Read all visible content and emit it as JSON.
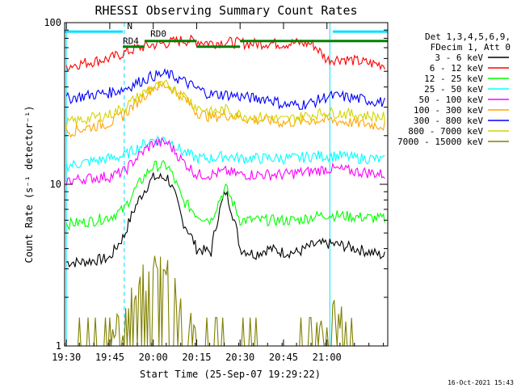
{
  "chart_data": {
    "type": "line",
    "title": "RHESSI Observing Summary Count Rates",
    "xlabel": "Start Time (25-Sep-07 19:29:22)",
    "ylabel": "Count Rate (s⁻¹ detector⁻¹)",
    "y_scale": "log",
    "ylim": [
      1,
      100
    ],
    "y_tick_labels": [
      "1",
      "10",
      "100"
    ],
    "x_tick_labels": [
      "19:30",
      "19:45",
      "20:00",
      "20:15",
      "20:30",
      "20:45",
      "21:00"
    ],
    "x_ticks_minutes": [
      0,
      15,
      30,
      45,
      60,
      75,
      90
    ],
    "xlim_minutes": [
      -0.6,
      111
    ],
    "legend_header": [
      "Det 1,3,4,5,6,9,",
      "FDecim 1, Att 0"
    ],
    "legend_position": "right",
    "timestamp": "16-Oct-2021 15:43",
    "annotations": [
      {
        "text": "N",
        "color": "#00e0ff",
        "x_minutes": 21,
        "y": 88
      },
      {
        "text": "RD0",
        "color": "#008000",
        "x_minutes": 29,
        "y": 79
      },
      {
        "text": "RD4",
        "color": "#008000",
        "x_minutes": 19.5,
        "y": 71
      }
    ],
    "segments": [
      {
        "name": "N",
        "color": "#00e0ff",
        "y": 88,
        "ranges": [
          [
            -0.6,
            19.5
          ],
          [
            92,
            111
          ]
        ]
      },
      {
        "name": "RD",
        "color": "#008000",
        "y": 77,
        "ranges": [
          [
            27,
            45
          ],
          [
            60,
            80.5
          ],
          [
            80.5,
            91
          ],
          [
            91,
            111
          ]
        ]
      },
      {
        "name": "RD4",
        "color": "#008000",
        "y": 71,
        "ranges": [
          [
            19.5,
            27
          ],
          [
            45,
            60
          ]
        ]
      }
    ],
    "vertical_lines": [
      {
        "x_minutes": 0,
        "style": "solid"
      },
      {
        "x_minutes": 20,
        "style": "dashed"
      },
      {
        "x_minutes": 91,
        "style": "solid"
      },
      {
        "x_minutes": 111,
        "style": "dashed"
      }
    ],
    "time_minutes": [
      0,
      5,
      10,
      15,
      20,
      25,
      30,
      35,
      40,
      45,
      50,
      55,
      60,
      65,
      70,
      75,
      80,
      85,
      90,
      95,
      100,
      105,
      110
    ],
    "series": [
      {
        "name": "3 - 6 keV",
        "color": "#000000",
        "values": [
          3.3,
          3.3,
          3.4,
          3.5,
          4.8,
          8,
          11,
          11,
          6,
          4,
          3.8,
          9,
          4,
          3.7,
          4,
          3.8,
          3.8,
          4.2,
          4.3,
          4.2,
          4,
          3.8,
          3.6
        ]
      },
      {
        "name": "6 - 12 keV",
        "color": "#ff0000",
        "values": [
          54,
          56,
          58,
          60,
          65,
          70,
          73,
          75,
          78,
          77,
          75,
          76,
          75,
          74,
          75,
          74,
          75,
          74,
          59,
          60,
          58,
          56,
          55
        ]
      },
      {
        "name": "12 - 25 keV",
        "color": "#00ff00",
        "values": [
          5.7,
          5.8,
          6,
          6.3,
          7,
          10,
          13,
          13,
          8,
          6.5,
          6,
          9.5,
          6,
          6,
          6,
          6,
          6,
          6.3,
          6.5,
          6.4,
          6.3,
          6.2,
          6.1
        ]
      },
      {
        "name": "25 - 50 keV",
        "color": "#00ffff",
        "values": [
          13,
          13.5,
          14,
          14.5,
          15,
          17,
          19,
          19,
          16,
          14.5,
          14.5,
          15,
          14.5,
          14.5,
          14.5,
          14.5,
          14.5,
          15,
          15,
          15,
          14.5,
          14.5,
          14
        ]
      },
      {
        "name": "50 - 100 keV",
        "color": "#ff00ff",
        "values": [
          10.5,
          10.8,
          11,
          11.2,
          12,
          15,
          18,
          18,
          14,
          11.5,
          11.5,
          12,
          11.5,
          11.5,
          11.5,
          11.5,
          11.8,
          12,
          12.5,
          12.3,
          12,
          11.8,
          11.5
        ]
      },
      {
        "name": "100 - 300 keV",
        "color": "#ffa500",
        "values": [
          21,
          22,
          23,
          24,
          27,
          33,
          40,
          41,
          35,
          28,
          26,
          27,
          26,
          25,
          25,
          24,
          24.5,
          25,
          25,
          24.5,
          24,
          23.5,
          23
        ]
      },
      {
        "name": "300 - 800 keV",
        "color": "#0000ff",
        "values": [
          34,
          35,
          36,
          37,
          39,
          43,
          47,
          48,
          44,
          39,
          36,
          36,
          35,
          34,
          34,
          31,
          31,
          32,
          35,
          35,
          34,
          33,
          32
        ]
      },
      {
        "name": "800 - 7000 keV",
        "color": "#d4d400",
        "values": [
          24,
          25,
          26,
          27,
          30,
          35,
          40,
          41,
          36,
          30,
          28,
          29,
          27,
          26,
          26,
          25,
          26,
          27,
          28,
          27.5,
          27,
          26.5,
          26
        ]
      },
      {
        "name": "7000 - 15000 keV",
        "color": "#808000",
        "values": [
          1,
          1,
          1,
          1,
          1.5,
          2.5,
          2.8,
          2.8,
          1.6,
          1,
          1,
          1,
          1,
          1,
          1,
          1,
          1,
          1,
          1.5,
          1.5,
          1,
          1,
          1
        ]
      }
    ]
  }
}
